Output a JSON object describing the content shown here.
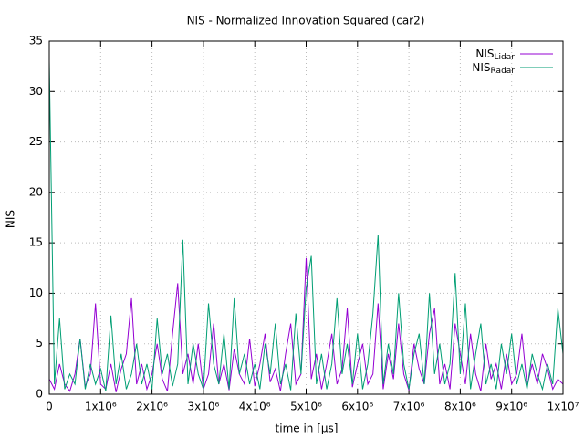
{
  "chart_data": {
    "type": "line",
    "title": "NIS - Normalized Innovation Squared (car2)",
    "xlabel": "time in [µs]",
    "ylabel": "NIS",
    "x": [
      0,
      100000,
      200000,
      300000,
      400000,
      500000,
      600000,
      700000,
      800000,
      900000,
      1000000,
      1100000,
      1200000,
      1300000,
      1400000,
      1500000,
      1600000,
      1700000,
      1800000,
      1900000,
      2000000,
      2100000,
      2200000,
      2300000,
      2400000,
      2500000,
      2600000,
      2700000,
      2800000,
      2900000,
      3000000,
      3100000,
      3200000,
      3300000,
      3400000,
      3500000,
      3600000,
      3700000,
      3800000,
      3900000,
      4000000,
      4100000,
      4200000,
      4300000,
      4400000,
      4500000,
      4600000,
      4700000,
      4800000,
      4900000,
      5000000,
      5100000,
      5200000,
      5300000,
      5400000,
      5500000,
      5600000,
      5700000,
      5800000,
      5900000,
      6000000,
      6100000,
      6200000,
      6300000,
      6400000,
      6500000,
      6600000,
      6700000,
      6800000,
      6900000,
      7000000,
      7100000,
      7200000,
      7300000,
      7400000,
      7500000,
      7600000,
      7700000,
      7800000,
      7900000,
      8000000,
      8100000,
      8200000,
      8300000,
      8400000,
      8500000,
      8600000,
      8700000,
      8800000,
      8900000,
      9000000,
      9100000,
      9200000,
      9300000,
      9400000,
      9500000,
      9600000,
      9700000,
      9800000,
      9900000,
      10000000
    ],
    "series": [
      {
        "name": "NIS_Lidar",
        "color": "#9400d3",
        "values": [
          1.5,
          0.5,
          3,
          1,
          0.3,
          2,
          5.5,
          0.8,
          2,
          9,
          1,
          0.5,
          3,
          0.2,
          2.5,
          4,
          9.5,
          1,
          3,
          0.5,
          2,
          5,
          1.5,
          0.3,
          6,
          11,
          2,
          4,
          1,
          5,
          0.5,
          2,
          7,
          1,
          3,
          0.4,
          4.5,
          2,
          1,
          5.5,
          0.8,
          3,
          6,
          1.2,
          2.5,
          0.3,
          4,
          7,
          1,
          2,
          13.5,
          1.5,
          4,
          0.5,
          3,
          6,
          1,
          2.5,
          8.5,
          0.7,
          3,
          5,
          1,
          2,
          9,
          0.5,
          4,
          1.5,
          7,
          2,
          0.4,
          5,
          2.5,
          1,
          6,
          8.5,
          1,
          3,
          0.5,
          7,
          4,
          1,
          6,
          2,
          0.3,
          5,
          1.5,
          3,
          0.5,
          4,
          1,
          2,
          6,
          0.8,
          3,
          1,
          4,
          2.5,
          0.5,
          1.5,
          1
        ]
      },
      {
        "name": "NIS_Radar",
        "color": "#009e73",
        "values": [
          33,
          1,
          7.5,
          0.5,
          2,
          1,
          5.5,
          0.5,
          3,
          1,
          2.5,
          0.3,
          7.8,
          1,
          4,
          0.5,
          2,
          5,
          1,
          3,
          0.5,
          7.5,
          2,
          4,
          0.8,
          3,
          15.3,
          1,
          5,
          2,
          0.5,
          9,
          3,
          1,
          6,
          0.5,
          9.5,
          2,
          4,
          1,
          3,
          0.5,
          5,
          2,
          7,
          1,
          3,
          0.4,
          8,
          2,
          10.5,
          13.7,
          1,
          4,
          0.5,
          3,
          9.5,
          2,
          5,
          1,
          6,
          0.5,
          3,
          8,
          15.8,
          1,
          5,
          2,
          10,
          3,
          0.5,
          4,
          6,
          1,
          10,
          2,
          5,
          1,
          3,
          12,
          2,
          9,
          0.5,
          4,
          7,
          1,
          3,
          0.5,
          5,
          2,
          6,
          1,
          3,
          0.5,
          4,
          2,
          0.5,
          3,
          1,
          8.5,
          4
        ]
      }
    ],
    "xlim": [
      0,
      10000000
    ],
    "xticks": [
      0,
      {
        "value": 1000000,
        "label": "1x10⁶"
      },
      {
        "value": 2000000,
        "label": "2x10⁶"
      },
      {
        "value": 3000000,
        "label": "3x10⁶"
      },
      {
        "value": 4000000,
        "label": "4x10⁶"
      },
      {
        "value": 5000000,
        "label": "5x10⁶"
      },
      {
        "value": 6000000,
        "label": "6x10⁶"
      },
      {
        "value": 7000000,
        "label": "7x10⁶"
      },
      {
        "value": 8000000,
        "label": "8x10⁶"
      },
      {
        "value": 9000000,
        "label": "9x10⁶"
      },
      {
        "value": 10000000,
        "label": "1x10⁷"
      }
    ],
    "ylim": [
      0,
      35
    ],
    "yticks": [
      0,
      5,
      10,
      15,
      20,
      25,
      30,
      35
    ],
    "grid": true,
    "legend": "top-right"
  }
}
